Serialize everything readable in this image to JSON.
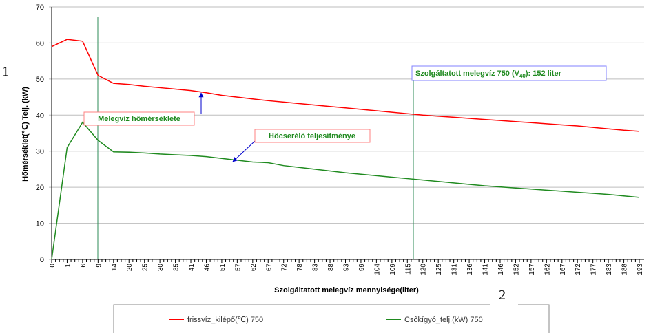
{
  "page_labels": [
    "1",
    "2"
  ],
  "chart_data": {
    "type": "line",
    "xlabel": "Szolgáltatott melegvíz mennyisége(liter)",
    "ylabel": "Hőmérséklet(℃) Telj. (kW)",
    "categories": [
      "0",
      "1",
      "6",
      "9",
      "14",
      "20",
      "25",
      "30",
      "35",
      "41",
      "46",
      "51",
      "57",
      "62",
      "67",
      "72",
      "78",
      "83",
      "88",
      "93",
      "99",
      "104",
      "109",
      "115",
      "120",
      "125",
      "131",
      "136",
      "141",
      "146",
      "152",
      "157",
      "162",
      "167",
      "172",
      "177",
      "183",
      "188",
      "193"
    ],
    "series": [
      {
        "name": "frissvíz_kilépő(℃) 750",
        "color": "#ff0000",
        "values": [
          59,
          61,
          60.5,
          51,
          48.8,
          48.5,
          48.0,
          47.6,
          47.2,
          46.8,
          46.2,
          45.5,
          45.0,
          44.5,
          44.0,
          43.6,
          43.2,
          42.8,
          42.4,
          42.0,
          41.6,
          41.2,
          40.8,
          40.4,
          40.0,
          39.7,
          39.4,
          39.1,
          38.8,
          38.5,
          38.2,
          37.9,
          37.6,
          37.3,
          37.0,
          36.6,
          36.2,
          35.8,
          35.5
        ]
      },
      {
        "name": "Csőkígyó_telj.(kW) 750",
        "color": "#1f8a1f",
        "values": [
          0,
          31,
          38,
          33,
          29.8,
          29.7,
          29.5,
          29.2,
          29.0,
          28.8,
          28.5,
          28.0,
          27.5,
          27.0,
          26.8,
          26.0,
          25.5,
          25.0,
          24.5,
          24.0,
          23.6,
          23.2,
          22.8,
          22.4,
          22.0,
          21.6,
          21.2,
          20.8,
          20.4,
          20.1,
          19.8,
          19.5,
          19.2,
          18.9,
          18.6,
          18.3,
          18.0,
          17.6,
          17.2
        ]
      }
    ],
    "ylim": [
      0,
      70
    ],
    "yticks": [
      0,
      10,
      20,
      30,
      40,
      50,
      60,
      70
    ],
    "grid": true,
    "annotations": [
      {
        "text": "Melegvíz hőmérséklete"
      },
      {
        "text": "Hőcserélő teljesítménye"
      },
      {
        "text_parts": [
          "Szolgáltatott melegvíz 750 (V",
          "40",
          "): 152 liter"
        ]
      }
    ]
  }
}
